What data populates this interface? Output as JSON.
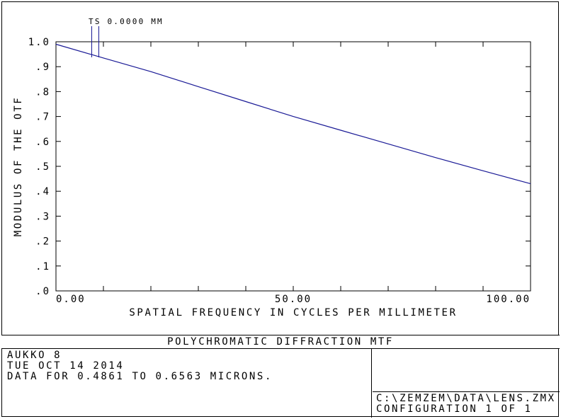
{
  "window": {
    "background_color": "#ffffff",
    "frame_color": "#000000"
  },
  "chart_data": {
    "type": "line",
    "title": "POLYCHROMATIC DIFFRACTION MTF",
    "xlabel": "SPATIAL FREQUENCY IN CYCLES PER MILLIMETER",
    "ylabel": "MODULUS OF THE OTF",
    "xlim": [
      0,
      100
    ],
    "ylim": [
      0.0,
      1.0
    ],
    "grid": false,
    "x_ticks": [
      0,
      10,
      20,
      30,
      40,
      50,
      60,
      70,
      80,
      90,
      100
    ],
    "x_major_labels": [
      {
        "value": 0,
        "text": "0.00",
        "anchor": "start"
      },
      {
        "value": 50,
        "text": "50.00",
        "anchor": "middle"
      },
      {
        "value": 100,
        "text": "100.00",
        "anchor": "end"
      }
    ],
    "y_ticks": [
      0.0,
      0.1,
      0.2,
      0.3,
      0.4,
      0.5,
      0.6,
      0.7,
      0.8,
      0.9,
      1.0
    ],
    "y_tick_labels": [
      ".0",
      ".1",
      ".2",
      ".3",
      ".4",
      ".5",
      ".6",
      ".7",
      ".8",
      ".9",
      "1.0"
    ],
    "legend": {
      "label": "TS 0.0000 MM",
      "position": "top-left"
    },
    "series": [
      {
        "name": "TS 0.0000 MM",
        "color": "#1a1a96",
        "x": [
          0,
          10,
          20,
          30,
          40,
          50,
          60,
          70,
          80,
          90,
          100
        ],
        "y": [
          0.99,
          0.935,
          0.88,
          0.82,
          0.76,
          0.7,
          0.645,
          0.59,
          0.535,
          0.482,
          0.43
        ]
      }
    ],
    "axis_color": "#000000"
  },
  "footer": {
    "title": "POLYCHROMATIC DIFFRACTION MTF",
    "info_lines": [
      "AUKKO 8",
      "TUE OCT 14 2014",
      "DATA FOR 0.4861 TO 0.6563 MICRONS."
    ],
    "file_path": "C:\\ZEMZEM\\DATA\\LENS.ZMX",
    "configuration": "CONFIGURATION 1 OF 1"
  }
}
